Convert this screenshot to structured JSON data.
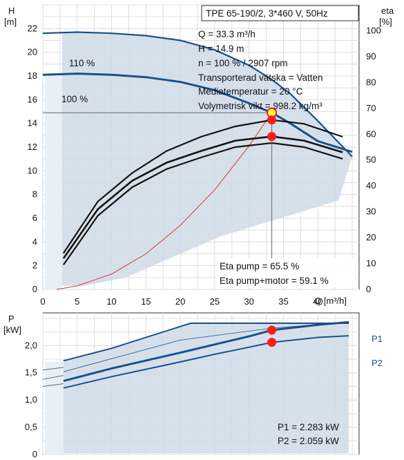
{
  "chart_data": [
    {
      "type": "line",
      "name": "pump-curve",
      "title": "TPE 65-190/2, 3*460 V, 50Hz",
      "xlabel": "Q [m³/h]",
      "ylabel_top": "H",
      "ylabel_unit": "[m]",
      "y2label_top": "eta",
      "y2label_unit": "[%]",
      "xlim": [
        0,
        46
      ],
      "ylim": [
        0,
        24
      ],
      "y2lim": [
        0,
        110
      ],
      "grid": true,
      "x_ticks": [
        "0",
        "5",
        "10",
        "15",
        "20",
        "25",
        "30",
        "35",
        "40"
      ],
      "y_ticks": [
        "0",
        "2",
        "4",
        "6",
        "8",
        "10",
        "12",
        "14",
        "16",
        "18",
        "20",
        "22"
      ],
      "y2_ticks": [
        "0",
        "10",
        "20",
        "30",
        "40",
        "50",
        "60",
        "70",
        "80",
        "90",
        "100"
      ],
      "info_lines": [
        "Q = 33.3 m³/h",
        "H = 14.9 m",
        "n = 100 % / 2907 rpm",
        "Transporterad vätska = Vatten",
        "Mediatemperatur = 20 °C",
        "Volymetrisk vikt = 998.2 kg/m³"
      ],
      "curve_labels": [
        "110 %",
        "100 %"
      ],
      "eta_notes": [
        "Eta pump = 65.5 %",
        "Eta pump+motor = 59.1 %"
      ],
      "head_curve_110": {
        "x": [
          0,
          5,
          10,
          15,
          20,
          25,
          30,
          33.3,
          36,
          40,
          45
        ],
        "y": [
          21.6,
          21.7,
          21.6,
          21.4,
          21.0,
          20.2,
          18.9,
          17.7,
          16.5,
          14.2,
          11.2
        ]
      },
      "head_curve_100": {
        "x": [
          0,
          5,
          10,
          15,
          20,
          25,
          30,
          33.3,
          36,
          40,
          45
        ],
        "y": [
          18.1,
          18.2,
          18.1,
          17.9,
          17.5,
          16.8,
          15.7,
          14.9,
          14.0,
          12.5,
          11.6
        ]
      },
      "system_curve": {
        "x": [
          2,
          5,
          10,
          15,
          20,
          25,
          30,
          33.3
        ],
        "y": [
          0,
          0.3,
          1.3,
          3.0,
          5.4,
          8.4,
          12.1,
          14.9
        ]
      },
      "eta_pump_curve": {
        "x": [
          3,
          8,
          13,
          18,
          23,
          28,
          33.3,
          38,
          43.6
        ],
        "y": [
          14,
          34,
          45,
          53.5,
          59,
          63,
          65.5,
          64,
          59
        ]
      },
      "eta_total_curve": {
        "x": [
          3,
          8,
          13,
          18,
          23,
          28,
          33.3,
          38,
          43.6
        ],
        "y": [
          12,
          31,
          42,
          49,
          53.5,
          57.5,
          59.1,
          57.5,
          53
        ]
      },
      "operating_point": {
        "x": 33.3,
        "y": 14.9
      },
      "eta_points": [
        {
          "x": 33.3,
          "eta": 65.5
        },
        {
          "x": 33.3,
          "eta": 59.1
        }
      ],
      "colors": {
        "curve": "#1a4f8a",
        "system": "#e03030",
        "point": "#ff1a1a",
        "op_fill": "#ffff40",
        "area": "#cfdbe8",
        "grid": "#dddddd"
      }
    },
    {
      "type": "line",
      "name": "power-curve",
      "ylabel_top": "P",
      "ylabel_unit": "[kW]",
      "xlim": [
        0,
        46
      ],
      "ylim": [
        0,
        2.6
      ],
      "grid": true,
      "y_ticks": [
        "0",
        "0,5",
        "1,0",
        "1,5",
        "2,0"
      ],
      "series_labels": [
        "P1",
        "P2"
      ],
      "p1_curve": {
        "x": [
          3,
          10,
          20,
          25,
          30,
          33.3,
          40,
          44.5
        ],
        "y": [
          1.35,
          1.58,
          1.87,
          2.02,
          2.17,
          2.283,
          2.38,
          2.43
        ]
      },
      "p2_curve": {
        "x": [
          3,
          10,
          20,
          25,
          30,
          33.3,
          40,
          44.5
        ],
        "y": [
          1.22,
          1.43,
          1.7,
          1.84,
          1.97,
          2.059,
          2.15,
          2.18
        ]
      },
      "p110_curve": {
        "x": [
          3,
          10,
          20,
          21.5,
          30,
          40,
          44.5
        ],
        "y": [
          1.72,
          1.95,
          2.35,
          2.41,
          2.41,
          2.41,
          2.41
        ]
      },
      "operating_points": [
        {
          "x": 33.3,
          "y": 2.283
        },
        {
          "x": 33.3,
          "y": 2.059
        }
      ],
      "values_text": [
        "P1 = 2.283 kW",
        "P2 = 2.059 kW"
      ]
    }
  ]
}
